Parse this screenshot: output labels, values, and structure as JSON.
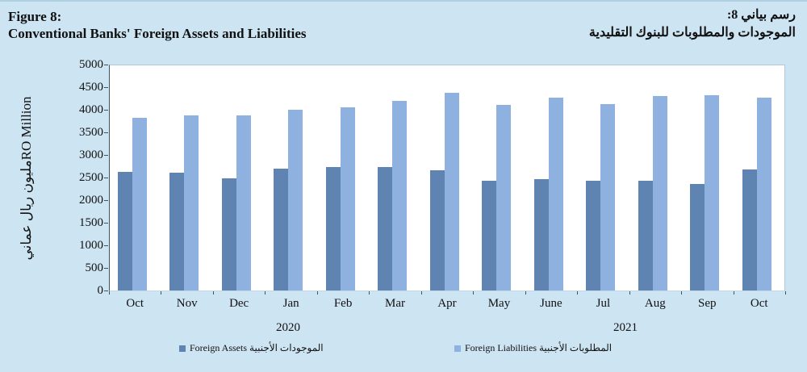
{
  "header": {
    "figure_label": "Figure 8:",
    "title": "Conventional Banks' Foreign Assets and Liabilities",
    "figure_label_ar": "رسم بياني 8:",
    "title_ar": "الموجودات والمطلوبات للبنوك التقليدية"
  },
  "chart_data": {
    "type": "bar",
    "title": "Conventional Banks' Foreign Assets and Liabilities",
    "title_ar": "الموجودات والمطلوبات للبنوك التقليدية",
    "ylabel_en": "RO Million",
    "ylabel_ar": "مليون ريال عماني",
    "ylim": [
      0,
      5000
    ],
    "ytick_step": 500,
    "grid": false,
    "legend_position": "bottom",
    "categories": [
      "Oct",
      "Nov",
      "Dec",
      "Jan",
      "Feb",
      "Mar",
      "Apr",
      "May",
      "June",
      "Jul",
      "Aug",
      "Sep",
      "Oct"
    ],
    "year_labels": [
      "2020",
      "2021"
    ],
    "series": [
      {
        "name": "Foreign Assets",
        "name_ar": "الموجودات الأجنبية",
        "color": "#6084B2",
        "values": [
          2620,
          2610,
          2480,
          2700,
          2730,
          2730,
          2660,
          2430,
          2470,
          2430,
          2430,
          2360,
          2680
        ]
      },
      {
        "name": "Foreign Liabilities",
        "name_ar": "المطلوبات الأجنبية",
        "color": "#8EB1DF",
        "values": [
          3820,
          3870,
          3870,
          4000,
          4050,
          4200,
          4370,
          4110,
          4270,
          4130,
          4300,
          4320,
          4260
        ]
      }
    ]
  },
  "colors": {
    "background": "#CDE4F2",
    "plot_background": "#FFFFFF",
    "axis": "#44505C",
    "assets_bar": "#6084B2",
    "liabilities_bar": "#8EB1DF"
  }
}
